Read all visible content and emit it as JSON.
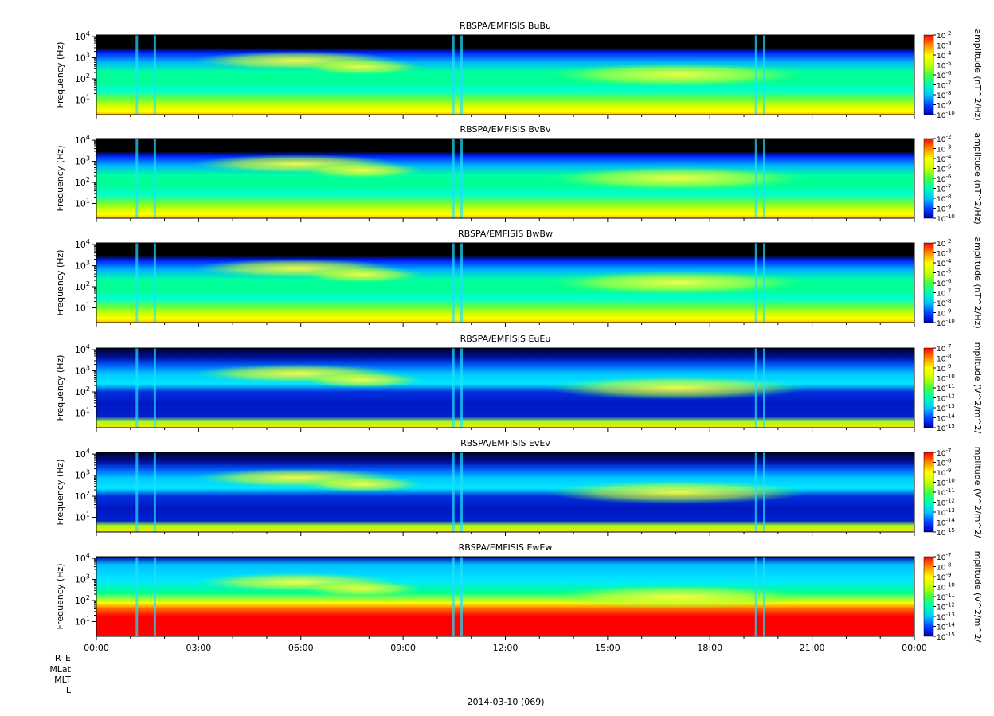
{
  "figure": {
    "date_label": "2014-03-10 (069)",
    "ephemeris_labels": [
      "R_E",
      "MLat",
      "MLT",
      "L"
    ]
  },
  "chart_data": [
    {
      "type": "heatmap",
      "title": "RBSPA/EMFISIS  BuBu",
      "ylabel": "Frequency (Hz)",
      "yscale": "log",
      "ylim": [
        2,
        12000
      ],
      "y_ticks": [
        {
          "base": "10",
          "exp": "1",
          "value": 10
        },
        {
          "base": "10",
          "exp": "2",
          "value": 100
        },
        {
          "base": "10",
          "exp": "3",
          "value": 1000
        },
        {
          "base": "10",
          "exp": "4",
          "value": 10000
        }
      ],
      "x_ticks": [],
      "colorbar": {
        "label": "amplitude (nT^2/Hz)",
        "scale": "log",
        "range": [
          1e-10,
          0.01
        ],
        "ticks": [
          {
            "base": "10",
            "exp": "-2"
          },
          {
            "base": "10",
            "exp": "-3"
          },
          {
            "base": "10",
            "exp": "-4"
          },
          {
            "base": "10",
            "exp": "-5"
          },
          {
            "base": "10",
            "exp": "-6"
          },
          {
            "base": "10",
            "exp": "-7"
          },
          {
            "base": "10",
            "exp": "-8"
          },
          {
            "base": "10",
            "exp": "-9"
          },
          {
            "base": "10",
            "exp": "-10"
          }
        ]
      }
    },
    {
      "type": "heatmap",
      "title": "RBSPA/EMFISIS  BvBv",
      "ylabel": "Frequency (Hz)",
      "yscale": "log",
      "ylim": [
        2,
        12000
      ],
      "y_ticks": [
        {
          "base": "10",
          "exp": "1",
          "value": 10
        },
        {
          "base": "10",
          "exp": "2",
          "value": 100
        },
        {
          "base": "10",
          "exp": "3",
          "value": 1000
        },
        {
          "base": "10",
          "exp": "4",
          "value": 10000
        }
      ],
      "x_ticks": [],
      "colorbar": {
        "label": "amplitude (nT^2/Hz)",
        "scale": "log",
        "range": [
          1e-10,
          0.01
        ],
        "ticks": [
          {
            "base": "10",
            "exp": "-2"
          },
          {
            "base": "10",
            "exp": "-3"
          },
          {
            "base": "10",
            "exp": "-4"
          },
          {
            "base": "10",
            "exp": "-5"
          },
          {
            "base": "10",
            "exp": "-6"
          },
          {
            "base": "10",
            "exp": "-7"
          },
          {
            "base": "10",
            "exp": "-8"
          },
          {
            "base": "10",
            "exp": "-9"
          },
          {
            "base": "10",
            "exp": "-10"
          }
        ]
      }
    },
    {
      "type": "heatmap",
      "title": "RBSPA/EMFISIS  BwBw",
      "ylabel": "Frequency (Hz)",
      "yscale": "log",
      "ylim": [
        2,
        12000
      ],
      "y_ticks": [
        {
          "base": "10",
          "exp": "1",
          "value": 10
        },
        {
          "base": "10",
          "exp": "2",
          "value": 100
        },
        {
          "base": "10",
          "exp": "3",
          "value": 1000
        },
        {
          "base": "10",
          "exp": "4",
          "value": 10000
        }
      ],
      "x_ticks": [],
      "colorbar": {
        "label": "amplitude (nT^2/Hz)",
        "scale": "log",
        "range": [
          1e-10,
          0.01
        ],
        "ticks": [
          {
            "base": "10",
            "exp": "-2"
          },
          {
            "base": "10",
            "exp": "-3"
          },
          {
            "base": "10",
            "exp": "-4"
          },
          {
            "base": "10",
            "exp": "-5"
          },
          {
            "base": "10",
            "exp": "-6"
          },
          {
            "base": "10",
            "exp": "-7"
          },
          {
            "base": "10",
            "exp": "-8"
          },
          {
            "base": "10",
            "exp": "-9"
          },
          {
            "base": "10",
            "exp": "-10"
          }
        ]
      }
    },
    {
      "type": "heatmap",
      "title": "RBSPA/EMFISIS  EuEu",
      "ylabel": "Frequency (Hz)",
      "yscale": "log",
      "ylim": [
        2,
        12000
      ],
      "y_ticks": [
        {
          "base": "10",
          "exp": "1",
          "value": 10
        },
        {
          "base": "10",
          "exp": "2",
          "value": 100
        },
        {
          "base": "10",
          "exp": "3",
          "value": 1000
        },
        {
          "base": "10",
          "exp": "4",
          "value": 10000
        }
      ],
      "x_ticks": [],
      "colorbar": {
        "label": "mplitude (V^2/m^2/",
        "scale": "log",
        "range": [
          1e-15,
          1e-07
        ],
        "ticks": [
          {
            "base": "10",
            "exp": "-7"
          },
          {
            "base": "10",
            "exp": "-8"
          },
          {
            "base": "10",
            "exp": "-9"
          },
          {
            "base": "10",
            "exp": "-10"
          },
          {
            "base": "10",
            "exp": "-11"
          },
          {
            "base": "10",
            "exp": "-12"
          },
          {
            "base": "10",
            "exp": "-13"
          },
          {
            "base": "10",
            "exp": "-14"
          },
          {
            "base": "10",
            "exp": "-15"
          }
        ]
      }
    },
    {
      "type": "heatmap",
      "title": "RBSPA/EMFISIS  EvEv",
      "ylabel": "Frequency (Hz)",
      "yscale": "log",
      "ylim": [
        2,
        12000
      ],
      "y_ticks": [
        {
          "base": "10",
          "exp": "1",
          "value": 10
        },
        {
          "base": "10",
          "exp": "2",
          "value": 100
        },
        {
          "base": "10",
          "exp": "3",
          "value": 1000
        },
        {
          "base": "10",
          "exp": "4",
          "value": 10000
        }
      ],
      "x_ticks": [],
      "colorbar": {
        "label": "mplitude (V^2/m^2/",
        "scale": "log",
        "range": [
          1e-15,
          1e-07
        ],
        "ticks": [
          {
            "base": "10",
            "exp": "-7"
          },
          {
            "base": "10",
            "exp": "-8"
          },
          {
            "base": "10",
            "exp": "-9"
          },
          {
            "base": "10",
            "exp": "-10"
          },
          {
            "base": "10",
            "exp": "-11"
          },
          {
            "base": "10",
            "exp": "-12"
          },
          {
            "base": "10",
            "exp": "-13"
          },
          {
            "base": "10",
            "exp": "-14"
          },
          {
            "base": "10",
            "exp": "-15"
          }
        ]
      }
    },
    {
      "type": "heatmap",
      "title": "RBSPA/EMFISIS  EwEw",
      "ylabel": "Frequency (Hz)",
      "yscale": "log",
      "ylim": [
        2,
        12000
      ],
      "y_ticks": [
        {
          "base": "10",
          "exp": "1",
          "value": 10
        },
        {
          "base": "10",
          "exp": "2",
          "value": 100
        },
        {
          "base": "10",
          "exp": "3",
          "value": 1000
        },
        {
          "base": "10",
          "exp": "4",
          "value": 10000
        }
      ],
      "x_ticks": [
        "00:00",
        "03:00",
        "06:00",
        "09:00",
        "12:00",
        "15:00",
        "18:00",
        "21:00",
        "00:00"
      ],
      "colorbar": {
        "label": "mplitude (V^2/m^2/",
        "scale": "log",
        "range": [
          1e-15,
          1e-07
        ],
        "ticks": [
          {
            "base": "10",
            "exp": "-7"
          },
          {
            "base": "10",
            "exp": "-8"
          },
          {
            "base": "10",
            "exp": "-9"
          },
          {
            "base": "10",
            "exp": "-10"
          },
          {
            "base": "10",
            "exp": "-11"
          },
          {
            "base": "10",
            "exp": "-12"
          },
          {
            "base": "10",
            "exp": "-13"
          },
          {
            "base": "10",
            "exp": "-14"
          },
          {
            "base": "10",
            "exp": "-15"
          }
        ]
      }
    }
  ]
}
